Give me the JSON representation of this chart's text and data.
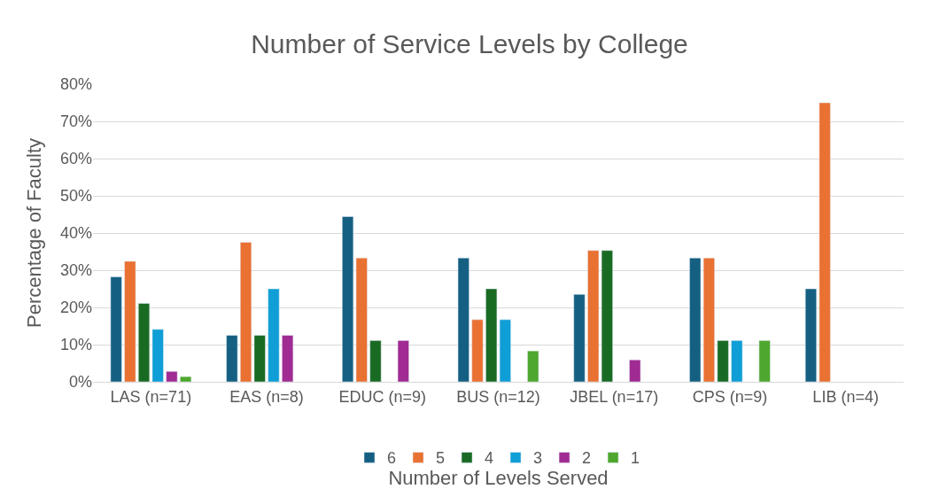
{
  "chart_data": {
    "type": "bar",
    "title": "Number of Service Levels by College",
    "xlabel": "Number of Levels Served",
    "ylabel": "Percentage of Faculty",
    "categories": [
      "LAS (n=71)",
      "EAS (n=8)",
      "EDUC (n=9)",
      "BUS (n=12)",
      "JBEL (n=17)",
      "CPS (n=9)",
      "LIB (n=4)"
    ],
    "series": [
      {
        "name": "6",
        "color": "#156082",
        "values": [
          28.2,
          12.5,
          44.4,
          33.3,
          23.5,
          33.3,
          25
        ]
      },
      {
        "name": "5",
        "color": "#e97132",
        "values": [
          32.4,
          37.5,
          33.3,
          16.7,
          35.3,
          33.3,
          75
        ]
      },
      {
        "name": "4",
        "color": "#196b24",
        "values": [
          21.1,
          12.5,
          11.1,
          25,
          35.3,
          11.1,
          null
        ]
      },
      {
        "name": "3",
        "color": "#0f9ed5",
        "values": [
          14.1,
          25,
          null,
          16.7,
          null,
          11.1,
          null
        ]
      },
      {
        "name": "2",
        "color": "#a02b93",
        "values": [
          2.8,
          12.5,
          11.1,
          null,
          5.9,
          null,
          null
        ]
      },
      {
        "name": "1",
        "color": "#4ea72e",
        "values": [
          1.4,
          null,
          null,
          8.3,
          null,
          11.1,
          null
        ]
      }
    ],
    "ylim": [
      0,
      80
    ],
    "yticks": [
      {
        "value": 0,
        "label": "0%"
      },
      {
        "value": 10,
        "label": "10%"
      },
      {
        "value": 20,
        "label": "20%"
      },
      {
        "value": 30,
        "label": "30%"
      },
      {
        "value": 40,
        "label": "40%"
      },
      {
        "value": 50,
        "label": "50%"
      },
      {
        "value": 60,
        "label": "60%"
      },
      {
        "value": 70,
        "label": "70%"
      },
      {
        "value": 80,
        "label": "80%"
      }
    ],
    "grid": "y",
    "legend": "bottom"
  }
}
